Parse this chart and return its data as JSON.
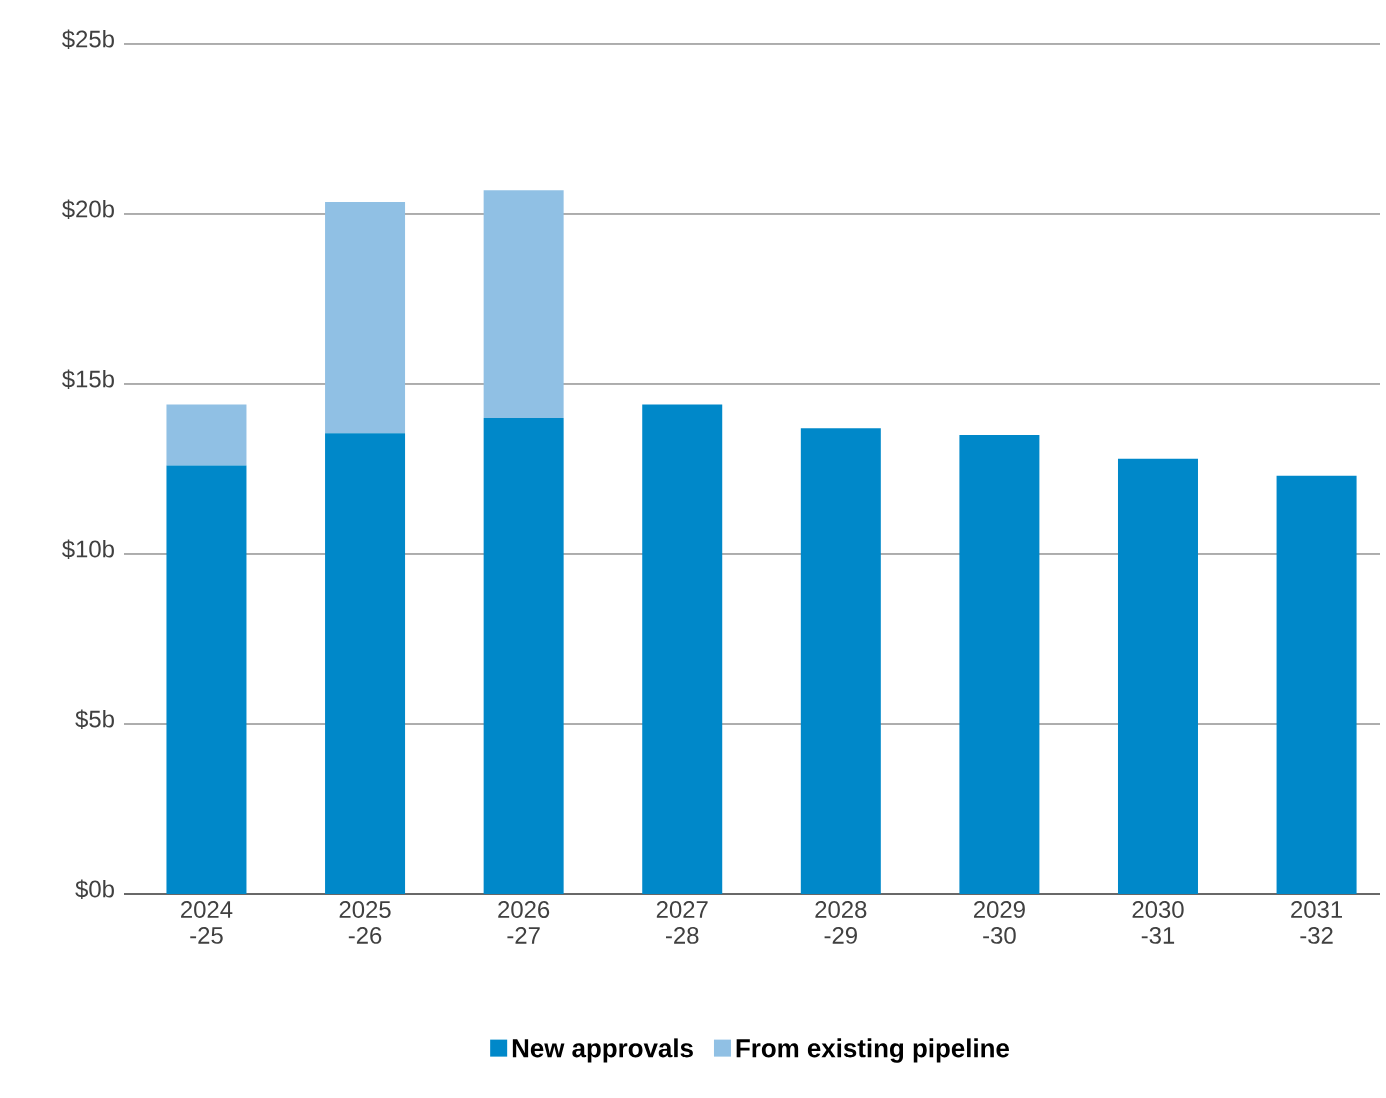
{
  "chart_data": {
    "type": "bar",
    "stacked": true,
    "categories": [
      "2024 -25",
      "2025 -26",
      "2026 -27",
      "2027 -28",
      "2028 -29",
      "2029 -30",
      "2030 -31",
      "2031 -32"
    ],
    "series": [
      {
        "name": "New approvals",
        "color": "#0088c9",
        "values": [
          12.6,
          13.55,
          14.0,
          14.4,
          13.7,
          13.5,
          12.8,
          12.3
        ]
      },
      {
        "name": "From existing pipeline",
        "color": "#90c0e4",
        "values": [
          1.8,
          6.8,
          6.7,
          null,
          null,
          null,
          null,
          null
        ]
      }
    ],
    "ylim": [
      0,
      25
    ],
    "yticks": [
      {
        "value": 0,
        "label": "$0b"
      },
      {
        "value": 5,
        "label": "$5b"
      },
      {
        "value": 10,
        "label": "$10b"
      },
      {
        "value": 15,
        "label": "$15b"
      },
      {
        "value": 20,
        "label": "$20b"
      },
      {
        "value": 25,
        "label": "$25b"
      }
    ],
    "grid": "y",
    "legend": "bottom"
  }
}
